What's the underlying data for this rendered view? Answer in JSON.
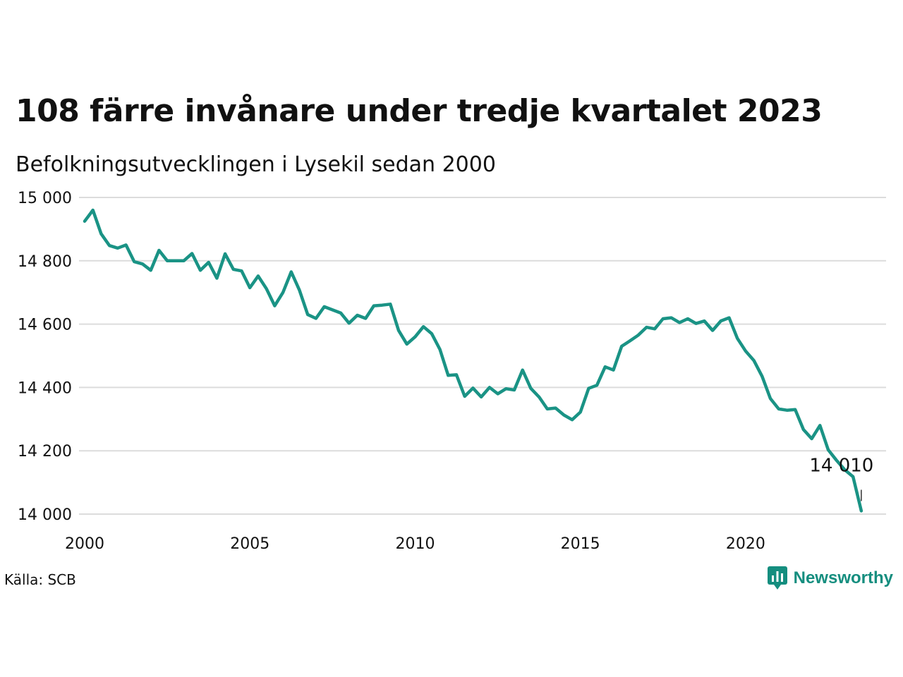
{
  "title": "108 färre invånare under tredje kvartalet 2023",
  "subtitle": "Befolkningsutvecklingen i Lysekil sedan 2000",
  "source": "Källa: SCB",
  "brand": {
    "name": "Newsworthy",
    "icon": "newsworthy-logo-icon",
    "color": "#158e7f"
  },
  "colors": {
    "line": "#1a9385",
    "grid": "#dcdcdc",
    "text": "#111111"
  },
  "chart_data": {
    "type": "line",
    "x_start": 2000.0,
    "x_step": 0.25,
    "x_ticks": [
      2000,
      2005,
      2010,
      2015,
      2020
    ],
    "y_ticks": [
      14000,
      14200,
      14400,
      14600,
      14800,
      15000
    ],
    "y_tick_labels": [
      "14 000",
      "14 200",
      "14 400",
      "14 600",
      "14 800",
      "15 000"
    ],
    "xlim": [
      2000,
      2024.25
    ],
    "ylim": [
      14000,
      15000
    ],
    "grid": true,
    "last_value_label": "14 010",
    "values": [
      14925,
      14960,
      14885,
      14848,
      14840,
      14850,
      14797,
      14790,
      14770,
      14833,
      14800,
      14800,
      14800,
      14823,
      14770,
      14795,
      14745,
      14822,
      14773,
      14768,
      14715,
      14752,
      14712,
      14658,
      14700,
      14765,
      14707,
      14630,
      14618,
      14655,
      14645,
      14635,
      14603,
      14628,
      14618,
      14658,
      14660,
      14663,
      14580,
      14537,
      14560,
      14592,
      14570,
      14520,
      14438,
      14440,
      14372,
      14398,
      14370,
      14400,
      14380,
      14396,
      14392,
      14455,
      14397,
      14370,
      14332,
      14335,
      14313,
      14298,
      14322,
      14397,
      14407,
      14465,
      14455,
      14530,
      14547,
      14565,
      14590,
      14585,
      14617,
      14620,
      14605,
      14617,
      14602,
      14610,
      14580,
      14610,
      14620,
      14555,
      14515,
      14485,
      14435,
      14365,
      14332,
      14328,
      14330,
      14267,
      14238,
      14280,
      14203,
      14170,
      14140,
      14118,
      14010
    ]
  }
}
